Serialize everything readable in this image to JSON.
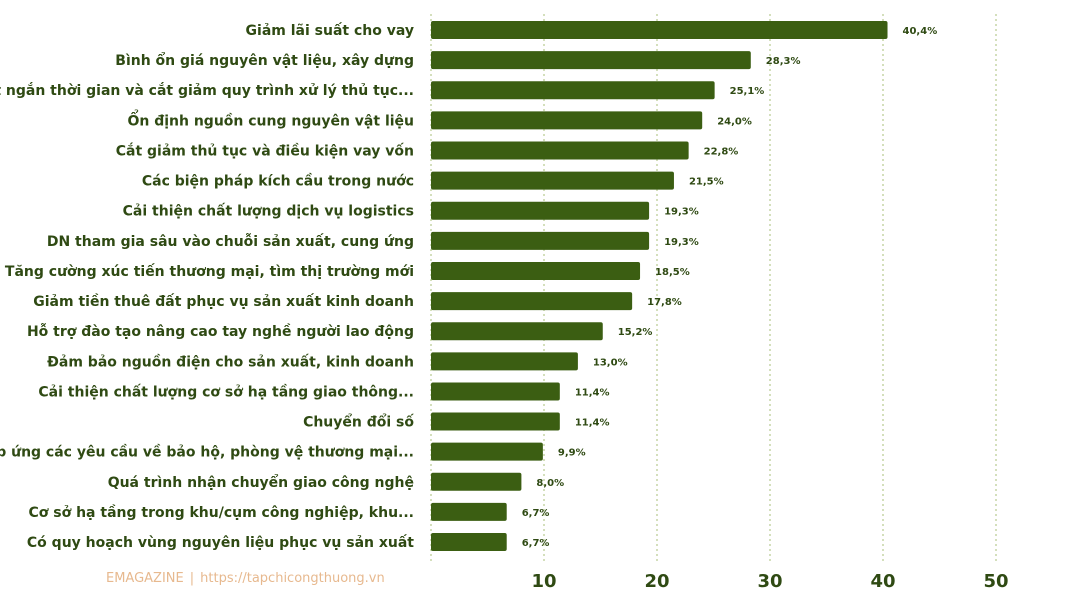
{
  "chart_data": {
    "type": "bar",
    "orientation": "horizontal",
    "categories": [
      "Giảm lãi suất cho vay",
      "Bình ổn giá nguyên vật liệu, xây dựng",
      "Rút ngắn thời gian và cắt giảm quy trình xử lý thủ tục...",
      "Ổn định nguồn cung nguyên vật liệu",
      "Cắt giảm thủ tục và điều kiện vay vốn",
      "Các biện pháp kích cầu trong nước",
      "Cải thiện chất lượng dịch vụ logistics",
      "DN tham gia sâu vào chuỗi sản xuất, cung ứng",
      "Tăng cường xúc tiến thương mại, tìm thị trường mới",
      "Giảm tiền thuê đất phục vụ sản xuất kinh doanh",
      "Hỗ trợ đào tạo nâng cao tay nghề người lao động",
      "Đảm bảo nguồn điện cho sản xuất, kinh doanh",
      "Cải thiện chất lượng cơ sở hạ tầng giao thông...",
      "Chuyển đổi số",
      "Đáp ứng các yêu cầu về bảo hộ, phòng vệ thương mại...",
      "Quá trình nhận chuyển giao công nghệ",
      "Cơ sở hạ tầng trong khu/cụm công nghiệp, khu...",
      "Có quy hoạch vùng nguyên liệu phục vụ sản xuất"
    ],
    "values": [
      40.4,
      28.3,
      25.1,
      24.0,
      22.8,
      21.5,
      19.3,
      19.3,
      18.5,
      17.8,
      15.2,
      13.0,
      11.4,
      11.4,
      9.9,
      8.0,
      6.7,
      6.7
    ],
    "value_labels": [
      "40,4%",
      "28,3%",
      "25,1%",
      "24,0%",
      "22,8%",
      "21,5%",
      "19,3%",
      "19,3%",
      "18,5%",
      "17,8%",
      "15,2%",
      "13,0%",
      "11,4%",
      "11,4%",
      "9,9%",
      "8,0%",
      "6,7%",
      "6,7%"
    ],
    "xlim": [
      0,
      50
    ],
    "xticks": [
      10,
      20,
      30,
      40,
      50
    ],
    "grid": true,
    "title": "",
    "xlabel": "",
    "ylabel": "",
    "colors": {
      "bar": "#3b5e12",
      "text": "#2f4a13",
      "grid": "#a8bf7a"
    }
  },
  "footer": {
    "brand": "EMAGAZINE",
    "separator": "|",
    "url": "https://tapchicongthuong.vn"
  }
}
